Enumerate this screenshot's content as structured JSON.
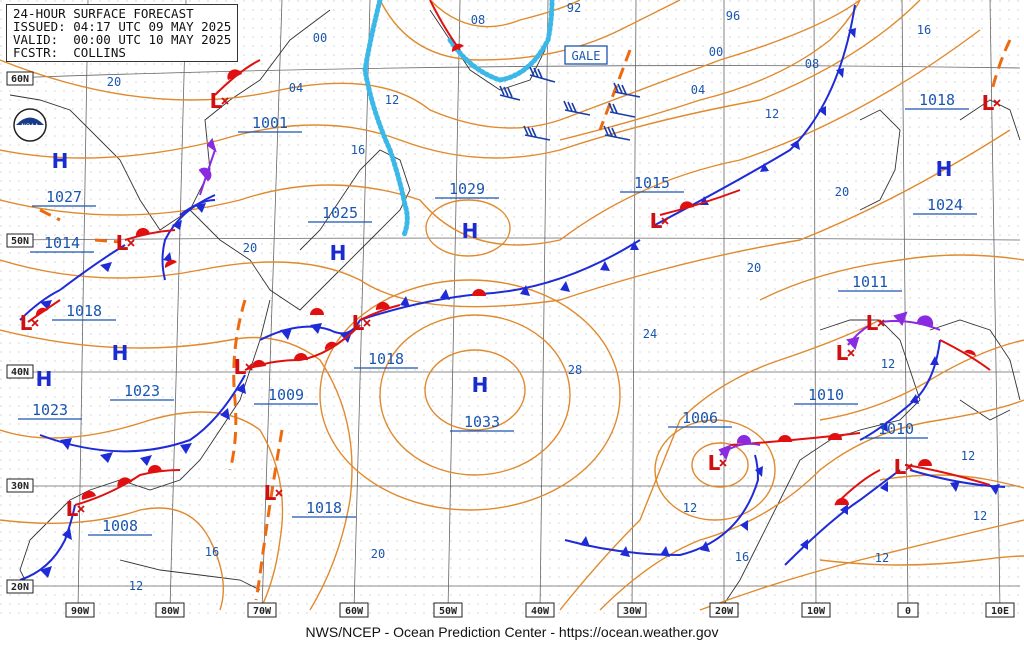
{
  "header": {
    "line1": "24-HOUR SURFACE FORECAST",
    "line2": "ISSUED: 04:17 UTC 09 MAY 2025",
    "line3": "VALID:  00:00 UTC 10 MAY 2025",
    "line4": "FCSTR:  COLLINS"
  },
  "footer": "NWS/NCEP - Ocean Prediction Center - https://ocean.weather.gov",
  "logo_text": "NOAA",
  "gale_label": "GALE",
  "lat_labels": [
    "60N",
    "50N",
    "40N",
    "30N",
    "20N"
  ],
  "lon_labels": [
    "90W",
    "80W",
    "70W",
    "60W",
    "50W",
    "40W",
    "30W",
    "20W",
    "10W",
    "0",
    "10E"
  ],
  "highs": [
    {
      "name": "H",
      "value": "1027"
    },
    {
      "name": "H",
      "value": "1025"
    },
    {
      "name": "H",
      "value": "1029"
    },
    {
      "name": "H",
      "value": "1033"
    },
    {
      "name": "H",
      "value": "1024"
    },
    {
      "name": "H",
      "value": "1023"
    },
    {
      "name": "H",
      "value": "1023"
    }
  ],
  "lows": [
    {
      "name": "L",
      "value": "1001"
    },
    {
      "name": "L",
      "value": "1014"
    },
    {
      "name": "L",
      "value": "1018"
    },
    {
      "name": "L",
      "value": "1009"
    },
    {
      "name": "L",
      "value": "1018"
    },
    {
      "name": "L",
      "value": "1008"
    },
    {
      "name": "L",
      "value": "1018"
    },
    {
      "name": "L",
      "value": "1015"
    },
    {
      "name": "L",
      "value": "1018"
    },
    {
      "name": "L",
      "value": "1011"
    },
    {
      "name": "L",
      "value": "1010"
    },
    {
      "name": "L",
      "value": "1010"
    },
    {
      "name": "L",
      "value": "1006"
    }
  ],
  "isobar_labels": [
    "00",
    "04",
    "08",
    "92",
    "96",
    "00",
    "04",
    "08",
    "12",
    "16",
    "12",
    "16",
    "20",
    "20",
    "20",
    "20",
    "24",
    "28",
    "12",
    "12",
    "16",
    "16",
    "20",
    "12",
    "12",
    "12",
    "12",
    "20"
  ],
  "colors": {
    "isobar": "#e08a2e",
    "cold_front": "#1f2bd6",
    "warm_front": "#e01010",
    "occluded_front": "#8a2be2",
    "trough": "#ee6a10",
    "ice_edge": "#3cb8e8",
    "label_blue": "#1a56b0",
    "high_blue": "#1a2bd0",
    "low_red": "#d01010",
    "coast": "#333333",
    "grid": "#555555"
  }
}
